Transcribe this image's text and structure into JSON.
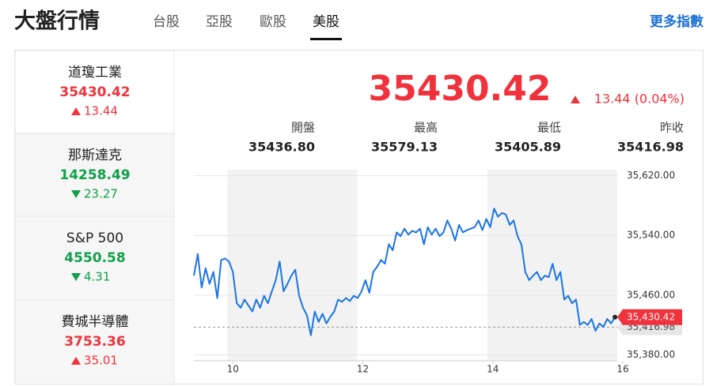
{
  "header": {
    "title": "大盤行情",
    "tabs": [
      "台股",
      "亞股",
      "歐股",
      "美股"
    ],
    "active_tab": 3,
    "more_link": "更多指數"
  },
  "indices": [
    {
      "name": "道瓊工業",
      "price": "35430.42",
      "change": "13.44",
      "direction": "up"
    },
    {
      "name": "那斯達克",
      "price": "14258.49",
      "change": "23.27",
      "direction": "down"
    },
    {
      "name": "S&P 500",
      "price": "4550.58",
      "change": "4.31",
      "direction": "down"
    },
    {
      "name": "費城半導體",
      "price": "3753.36",
      "change": "35.01",
      "direction": "up"
    }
  ],
  "active_index": 0,
  "quote": {
    "price": "35430.42",
    "change": "13.44 (0.04%)",
    "direction": "up",
    "stats": [
      {
        "label": "開盤",
        "value": "35436.80"
      },
      {
        "label": "最高",
        "value": "35579.13"
      },
      {
        "label": "最低",
        "value": "35405.89"
      },
      {
        "label": "昨收",
        "value": "35416.98"
      }
    ]
  },
  "colors": {
    "up": "#f0323c",
    "down": "#12a04a"
  },
  "chart_data": {
    "type": "line",
    "color": "#1b74e4",
    "x": [
      9.4,
      9.46,
      9.52,
      9.58,
      9.64,
      9.7,
      9.76,
      9.82,
      9.88,
      9.94,
      10,
      10.06,
      10.12,
      10.18,
      10.24,
      10.3,
      10.36,
      10.42,
      10.48,
      10.54,
      10.6,
      10.66,
      10.72,
      10.78,
      10.84,
      10.9,
      10.96,
      11.02,
      11.08,
      11.14,
      11.2,
      11.26,
      11.32,
      11.38,
      11.44,
      11.5,
      11.56,
      11.62,
      11.68,
      11.74,
      11.8,
      11.86,
      11.92,
      11.98,
      12.04,
      12.1,
      12.16,
      12.22,
      12.28,
      12.34,
      12.4,
      12.46,
      12.52,
      12.58,
      12.64,
      12.7,
      12.76,
      12.82,
      12.88,
      12.94,
      13,
      13.06,
      13.12,
      13.18,
      13.24,
      13.3,
      13.36,
      13.42,
      13.48,
      13.54,
      13.6,
      13.66,
      13.72,
      13.78,
      13.84,
      13.9,
      13.96,
      14.02,
      14.08,
      14.14,
      14.2,
      14.26,
      14.32,
      14.38,
      14.44,
      14.5,
      14.56,
      14.62,
      14.68,
      14.74,
      14.8,
      14.86,
      14.92,
      14.98,
      15.04,
      15.1,
      15.16,
      15.22,
      15.28,
      15.34,
      15.4,
      15.46,
      15.52,
      15.58,
      15.64,
      15.7,
      15.76,
      15.82,
      15.88
    ],
    "values": [
      35486,
      35515,
      35470,
      35496,
      35475,
      35491,
      35456,
      35507,
      35509,
      35505,
      35491,
      35449,
      35443,
      35454,
      35446,
      35438,
      35454,
      35443,
      35459,
      35449,
      35465,
      35480,
      35505,
      35465,
      35475,
      35486,
      35494,
      35459,
      35443,
      35433,
      35406,
      35438,
      35424,
      35435,
      35422,
      35431,
      35438,
      35454,
      35451,
      35456,
      35452,
      35459,
      35456,
      35465,
      35480,
      35463,
      35491,
      35498,
      35507,
      35502,
      35528,
      35520,
      35544,
      35539,
      35549,
      35541,
      35546,
      35544,
      35549,
      35528,
      35551,
      35541,
      35549,
      35539,
      35544,
      35560,
      35549,
      35533,
      35554,
      35544,
      35547,
      35549,
      35551,
      35560,
      35547,
      35562,
      35551,
      35576,
      35565,
      35570,
      35568,
      35554,
      35560,
      35539,
      35528,
      35491,
      35480,
      35486,
      35491,
      35480,
      35486,
      35484,
      35502,
      35480,
      35491,
      35454,
      35459,
      35449,
      35454,
      35420,
      35424,
      35420,
      35428,
      35412,
      35422,
      35417,
      35428,
      35422,
      35430.42
    ],
    "xlim": [
      9.4,
      16
    ],
    "xticks": [
      10,
      12,
      14,
      16
    ],
    "ylim": [
      35372,
      35628
    ],
    "yticks": [
      {
        "value": 35620,
        "label": "35,620.00"
      },
      {
        "value": 35540,
        "label": "35,540.00"
      },
      {
        "value": 35460,
        "label": "35,460.00"
      },
      {
        "value": 35380,
        "label": "35,380.00"
      }
    ],
    "grid": true,
    "reference_line": {
      "value": 35416.98,
      "label": "35,416.98"
    },
    "last_label": {
      "value": 35430.42,
      "label": "35,430.42"
    }
  }
}
